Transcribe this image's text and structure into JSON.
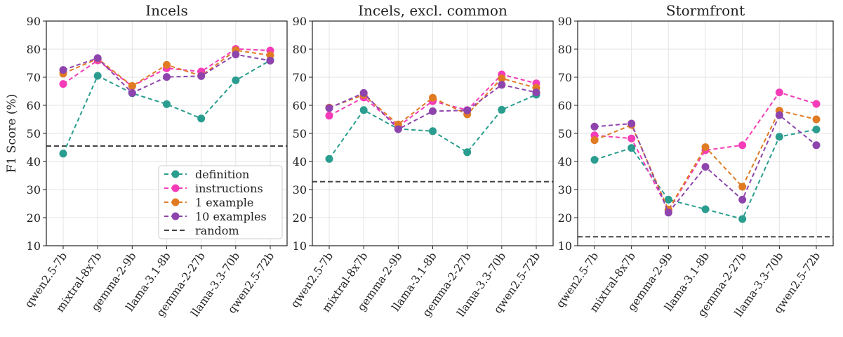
{
  "figure": {
    "ylabel": "F1 Score (%)",
    "legend_entries": [
      "definition",
      "instructions",
      "1 example",
      "10 examples",
      "random"
    ]
  },
  "chart_data": [
    {
      "type": "line",
      "title": "Incels",
      "xlabel": "",
      "ylabel": "F1 Score (%)",
      "ylim": [
        10,
        90
      ],
      "yticks": [
        10,
        20,
        30,
        40,
        50,
        60,
        70,
        80,
        90
      ],
      "grid": true,
      "legend": "lower right",
      "categories": [
        "qwen2.5-7b",
        "mixtral-8x7b",
        "gemma-2-9b",
        "llama-3.1-8b",
        "gemma-2-27b",
        "llama-3.3-70b",
        "qwen2.5-72b"
      ],
      "series": [
        {
          "name": "definition",
          "color": "#2a9d8f",
          "values": [
            42.8,
            70.5,
            64.3,
            60.4,
            55.3,
            68.9,
            76.0
          ]
        },
        {
          "name": "instructions",
          "color": "#f43cb8",
          "values": [
            67.6,
            76.0,
            66.8,
            73.2,
            72.0,
            80.1,
            79.5
          ]
        },
        {
          "name": "1 example",
          "color": "#e07b24",
          "values": [
            71.3,
            76.6,
            66.9,
            74.4,
            70.5,
            79.6,
            77.8
          ]
        },
        {
          "name": "10 examples",
          "color": "#8e44ad",
          "values": [
            72.6,
            76.8,
            64.4,
            70.1,
            70.4,
            78.1,
            75.9
          ]
        }
      ],
      "random_baseline": {
        "name": "random",
        "color": "#444444",
        "value": 45.5
      }
    },
    {
      "type": "line",
      "title": "Incels, excl. common",
      "xlabel": "",
      "ylabel": "",
      "ylim": [
        10,
        90
      ],
      "yticks": [
        10,
        20,
        30,
        40,
        50,
        60,
        70,
        80,
        90
      ],
      "grid": true,
      "categories": [
        "qwen2.5-7b",
        "mixtral-8x7b",
        "gemma-2-9b",
        "llama-3.1-8b",
        "gemma-2-27b",
        "llama-3.3-70b",
        "qwen2.5-72b"
      ],
      "series": [
        {
          "name": "definition",
          "color": "#2a9d8f",
          "values": [
            40.9,
            58.3,
            51.6,
            50.8,
            43.3,
            58.4,
            63.8
          ]
        },
        {
          "name": "instructions",
          "color": "#f43cb8",
          "values": [
            56.3,
            62.8,
            52.5,
            61.5,
            58.3,
            71.0,
            67.8
          ]
        },
        {
          "name": "1 example",
          "color": "#e07b24",
          "values": [
            59.2,
            63.7,
            53.2,
            62.7,
            56.8,
            69.6,
            66.2
          ]
        },
        {
          "name": "10 examples",
          "color": "#8e44ad",
          "values": [
            59.0,
            64.4,
            51.5,
            57.9,
            58.2,
            67.3,
            64.6
          ]
        }
      ],
      "random_baseline": {
        "name": "random",
        "color": "#444444",
        "value": 32.8
      }
    },
    {
      "type": "line",
      "title": "Stormfront",
      "xlabel": "",
      "ylabel": "",
      "ylim": [
        10,
        90
      ],
      "yticks": [
        10,
        20,
        30,
        40,
        50,
        60,
        70,
        80,
        90
      ],
      "grid": true,
      "categories": [
        "qwen2.5-7b",
        "mixtral-8x7b",
        "gemma-2-9b",
        "llama-3.1-8b",
        "gemma-2-27b",
        "llama-3.3-70b",
        "qwen2.5-72b"
      ],
      "series": [
        {
          "name": "definition",
          "color": "#2a9d8f",
          "values": [
            40.6,
            44.8,
            26.4,
            23.0,
            19.5,
            48.8,
            51.4
          ]
        },
        {
          "name": "instructions",
          "color": "#f43cb8",
          "values": [
            49.3,
            48.2,
            22.6,
            44.0,
            45.8,
            64.6,
            60.5
          ]
        },
        {
          "name": "1 example",
          "color": "#e07b24",
          "values": [
            47.6,
            53.0,
            22.8,
            45.1,
            31.0,
            58.1,
            55.0
          ]
        },
        {
          "name": "10 examples",
          "color": "#8e44ad",
          "values": [
            52.4,
            53.5,
            21.8,
            38.1,
            26.4,
            56.5,
            45.8
          ]
        }
      ],
      "random_baseline": {
        "name": "random",
        "color": "#444444",
        "value": 13.2
      }
    }
  ]
}
